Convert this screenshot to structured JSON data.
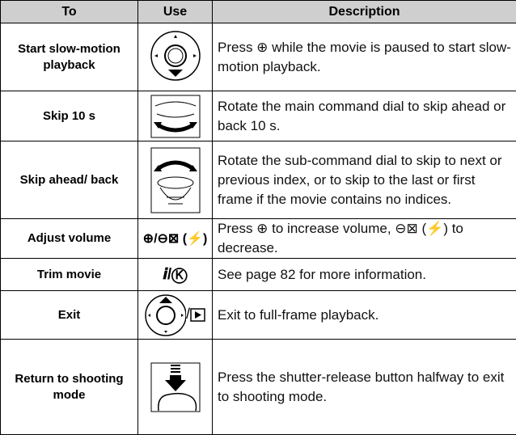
{
  "table": {
    "headers": [
      "To",
      "Use",
      "Description"
    ],
    "rows": [
      {
        "to": "Start slow-motion playback",
        "description": "Press ⊕ while the movie is paused to start slow-motion playback."
      },
      {
        "to": "Skip 10 s",
        "description": "Rotate the main command dial to skip ahead or back 10 s."
      },
      {
        "to": "Skip ahead/ back",
        "description": "Rotate the sub-command dial to skip to next or previous index, or to skip to the last or first frame if the movie contains no indices."
      },
      {
        "to": "Adjust volume",
        "use": "⊕/⊖⊠ (⚡)",
        "description": "Press ⊕ to increase volume, ⊖⊠ (⚡) to decrease."
      },
      {
        "to": "Trim movie",
        "use": "𝒊/Ⓚ",
        "description": "See page 82 for more information."
      },
      {
        "to": "Exit",
        "use": "/",
        "description": "Exit to full-frame playback."
      },
      {
        "to": "Return to shooting mode",
        "description": "Press the shutter-release button halfway to exit to shooting mode."
      }
    ]
  }
}
